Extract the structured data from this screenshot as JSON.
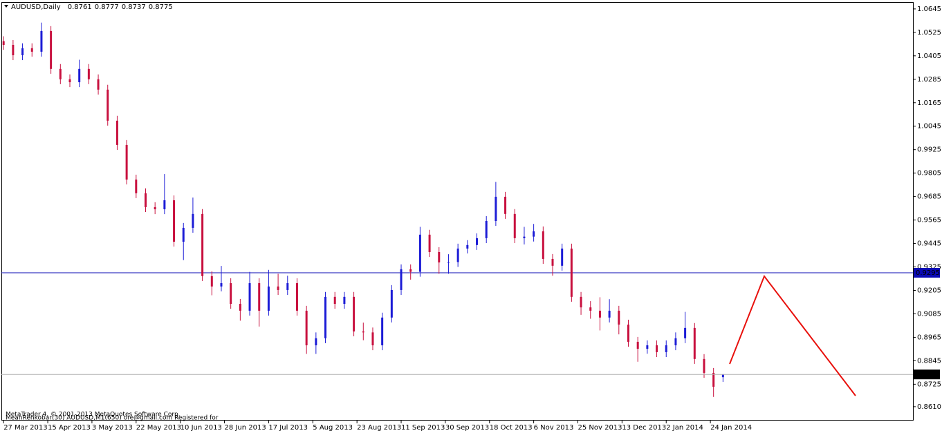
{
  "chart_data": {
    "type": "candlestick",
    "title": "AUDUSD,Daily",
    "up_color": "#1c1cd6",
    "down_color": "#c8103e",
    "hline": 0.9295,
    "hline_color": "#0a0ab4",
    "footer": [
      "MetaTrader 4, © 2001-2013 MetaQuotes Software Corp.",
      "MeanRenkobar(30) AUDUSD,M1(650)   ore@gmail.com   Registered for"
    ],
    "x": [
      0,
      3,
      6,
      9,
      12,
      15,
      18,
      21,
      24,
      27,
      30,
      33,
      36,
      39,
      42,
      45,
      48,
      51,
      54,
      57,
      60,
      63,
      66,
      69,
      72,
      75,
      78,
      81,
      84,
      87,
      90,
      93,
      96,
      99,
      102,
      105,
      108,
      111,
      114,
      117,
      120,
      123,
      126,
      129,
      132,
      135,
      138,
      141,
      144,
      147,
      150,
      153,
      156,
      159,
      162,
      165,
      168,
      171,
      174,
      177,
      180,
      183,
      186,
      189,
      192,
      195,
      198,
      201,
      204,
      207,
      210,
      213,
      216,
      219,
      222,
      225,
      228
    ],
    "ohlc": [
      [
        1.048,
        1.0505,
        1.0436,
        1.0461
      ],
      [
        1.0461,
        1.0486,
        1.0383,
        1.0408
      ],
      [
        1.0408,
        1.0469,
        1.0383,
        1.0444
      ],
      [
        1.0444,
        1.0469,
        1.0401,
        1.0426
      ],
      [
        1.0426,
        1.0575,
        1.0401,
        1.0532
      ],
      [
        1.0532,
        1.0557,
        1.0313,
        1.0338
      ],
      [
        1.0338,
        1.0363,
        1.026,
        1.0285
      ],
      [
        1.0285,
        1.031,
        1.0245,
        1.027
      ],
      [
        1.027,
        1.0385,
        1.0245,
        1.0338
      ],
      [
        1.0338,
        1.0363,
        1.026,
        1.0285
      ],
      [
        1.0285,
        1.031,
        1.0207,
        1.0232
      ],
      [
        1.0232,
        1.0257,
        1.0048,
        1.0073
      ],
      [
        1.0073,
        1.0098,
        0.9924,
        0.9949
      ],
      [
        0.9949,
        0.9974,
        0.9747,
        0.9772
      ],
      [
        0.9772,
        0.9797,
        0.9677,
        0.9702
      ],
      [
        0.9702,
        0.9727,
        0.9606,
        0.9631
      ],
      [
        0.9631,
        0.9656,
        0.9595,
        0.962
      ],
      [
        0.962,
        0.98,
        0.9595,
        0.9666
      ],
      [
        0.9666,
        0.9691,
        0.9429,
        0.9454
      ],
      [
        0.9454,
        0.955,
        0.936,
        0.9525
      ],
      [
        0.9525,
        0.968,
        0.95,
        0.9596
      ],
      [
        0.9596,
        0.9621,
        0.9253,
        0.9278
      ],
      [
        0.9278,
        0.9303,
        0.918,
        0.9225
      ],
      [
        0.9225,
        0.933,
        0.92,
        0.9242
      ],
      [
        0.9242,
        0.9267,
        0.9111,
        0.9136
      ],
      [
        0.9136,
        0.9161,
        0.905,
        0.9101
      ],
      [
        0.9101,
        0.93,
        0.9076,
        0.9242
      ],
      [
        0.9242,
        0.9267,
        0.902,
        0.9101
      ],
      [
        0.9101,
        0.931,
        0.9076,
        0.9225
      ],
      [
        0.9225,
        0.929,
        0.9182,
        0.9207
      ],
      [
        0.9207,
        0.928,
        0.9182,
        0.9242
      ],
      [
        0.9242,
        0.9267,
        0.9076,
        0.9101
      ],
      [
        0.9101,
        0.9126,
        0.888,
        0.8924
      ],
      [
        0.8924,
        0.899,
        0.888,
        0.896
      ],
      [
        0.896,
        0.9197,
        0.8935,
        0.9172
      ],
      [
        0.9172,
        0.9197,
        0.9111,
        0.9136
      ],
      [
        0.9136,
        0.9197,
        0.9111,
        0.9172
      ],
      [
        0.9172,
        0.9197,
        0.897,
        0.8995
      ],
      [
        0.8995,
        0.904,
        0.895,
        0.899
      ],
      [
        0.899,
        0.9015,
        0.8899,
        0.8924
      ],
      [
        0.8924,
        0.9091,
        0.8899,
        0.9066
      ],
      [
        0.9066,
        0.9232,
        0.9041,
        0.9207
      ],
      [
        0.9207,
        0.9338,
        0.9182,
        0.9313
      ],
      [
        0.9313,
        0.9338,
        0.926,
        0.93
      ],
      [
        0.93,
        0.953,
        0.9275,
        0.949
      ],
      [
        0.949,
        0.9515,
        0.9376,
        0.9401
      ],
      [
        0.9401,
        0.9426,
        0.929,
        0.9348
      ],
      [
        0.9348,
        0.939,
        0.929,
        0.935
      ],
      [
        0.935,
        0.9444,
        0.9325,
        0.9419
      ],
      [
        0.9419,
        0.9462,
        0.9394,
        0.9437
      ],
      [
        0.9437,
        0.9497,
        0.9412,
        0.9472
      ],
      [
        0.9472,
        0.9585,
        0.9447,
        0.956
      ],
      [
        0.956,
        0.976,
        0.9535,
        0.9684
      ],
      [
        0.9684,
        0.9709,
        0.9571,
        0.9596
      ],
      [
        0.9596,
        0.9621,
        0.9447,
        0.9472
      ],
      [
        0.9472,
        0.953,
        0.944,
        0.948
      ],
      [
        0.948,
        0.9545,
        0.9455,
        0.9507
      ],
      [
        0.9507,
        0.9532,
        0.9341,
        0.9366
      ],
      [
        0.9366,
        0.9391,
        0.928,
        0.9331
      ],
      [
        0.9331,
        0.9444,
        0.9306,
        0.9419
      ],
      [
        0.9419,
        0.9444,
        0.9147,
        0.9172
      ],
      [
        0.9172,
        0.9197,
        0.908,
        0.9118
      ],
      [
        0.9118,
        0.915,
        0.906,
        0.9101
      ],
      [
        0.9101,
        0.917,
        0.9,
        0.9066
      ],
      [
        0.9066,
        0.916,
        0.9041,
        0.9101
      ],
      [
        0.9101,
        0.9126,
        0.898,
        0.903
      ],
      [
        0.903,
        0.9055,
        0.8917,
        0.8942
      ],
      [
        0.8942,
        0.8967,
        0.884,
        0.8906
      ],
      [
        0.8906,
        0.8949,
        0.8881,
        0.8924
      ],
      [
        0.8924,
        0.8949,
        0.8864,
        0.8889
      ],
      [
        0.8889,
        0.8949,
        0.8864,
        0.8924
      ],
      [
        0.8924,
        0.899,
        0.8899,
        0.896
      ],
      [
        0.896,
        0.9095,
        0.8935,
        0.9013
      ],
      [
        0.9013,
        0.9038,
        0.8829,
        0.8854
      ],
      [
        0.8854,
        0.8879,
        0.8758,
        0.8783
      ],
      [
        0.8783,
        0.8808,
        0.866,
        0.8712
      ],
      [
        0.8761,
        0.8777,
        0.8737,
        0.8775
      ]
    ],
    "xlim": [
      -0.7,
      288.2
    ],
    "xticks": [
      {
        "value": 0,
        "label": "27 Mar 2013"
      },
      {
        "value": 14,
        "label": "15 Apr 2013"
      },
      {
        "value": 28,
        "label": "3 May 2013"
      },
      {
        "value": 42,
        "label": "22 May 2013"
      },
      {
        "value": 56,
        "label": "10 Jun 2013"
      },
      {
        "value": 70,
        "label": "28 Jun 2013"
      },
      {
        "value": 84,
        "label": "17 Jul 2013"
      },
      {
        "value": 98,
        "label": "5 Aug 2013"
      },
      {
        "value": 112,
        "label": "23 Aug 2013"
      },
      {
        "value": 126,
        "label": "11 Sep 2013"
      },
      {
        "value": 140,
        "label": "30 Sep 2013"
      },
      {
        "value": 154,
        "label": "18 Oct 2013"
      },
      {
        "value": 168,
        "label": "6 Nov 2013"
      },
      {
        "value": 182,
        "label": "25 Nov 2013"
      },
      {
        "value": 196,
        "label": "13 Dec 2013"
      },
      {
        "value": 210,
        "label": "2 Jan 2014"
      },
      {
        "value": 224,
        "label": "24 Jan 2014"
      }
    ],
    "ylim": [
      0.8539,
      1.068
    ],
    "yticks": [
      1.0645,
      1.0525,
      1.0405,
      1.0285,
      1.0165,
      1.0045,
      0.9925,
      0.9805,
      0.9685,
      0.9565,
      0.9445,
      0.9325,
      0.9205,
      0.9085,
      0.8965,
      0.8845,
      0.8725,
      {
        "value": 0.861,
        "label": "0.8610"
      }
    ]
  }
}
